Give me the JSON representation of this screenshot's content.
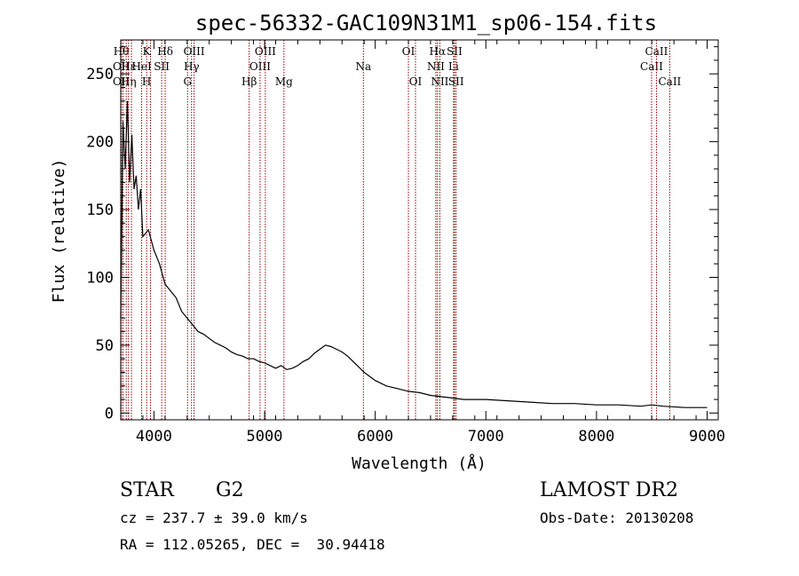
{
  "chart_data": {
    "type": "line",
    "title": "spec-56332-GAC109N31M1_sp06-154.fits",
    "xlabel": "Wavelength (Å)",
    "ylabel": "Flux (relative)",
    "xlim": [
      3700,
      9100
    ],
    "ylim": [
      -5,
      275
    ],
    "xticks": [
      4000,
      5000,
      6000,
      7000,
      8000,
      9000
    ],
    "yticks": [
      0,
      50,
      100,
      150,
      200,
      250
    ],
    "line_color": "#000000",
    "marker_color": "#8b0000",
    "series": [
      {
        "x": [
          3700,
          3720,
          3740,
          3760,
          3780,
          3800,
          3820,
          3840,
          3860,
          3880,
          3900,
          3950,
          4000,
          4050,
          4100,
          4150,
          4200,
          4250,
          4300,
          4350,
          4400,
          4450,
          4500,
          4550,
          4600,
          4650,
          4700,
          4750,
          4800,
          4850,
          4900,
          4950,
          5000,
          5050,
          5100,
          5150,
          5200,
          5250,
          5300,
          5350,
          5400,
          5450,
          5500,
          5550,
          5600,
          5650,
          5700,
          5750,
          5800,
          5850,
          5900,
          5950,
          6000,
          6100,
          6200,
          6300,
          6400,
          6500,
          6600,
          6700,
          6800,
          7000,
          7200,
          7400,
          7600,
          7800,
          8000,
          8200,
          8400,
          8500,
          8600,
          8800,
          9000
        ],
        "y": [
          70,
          215,
          180,
          230,
          170,
          205,
          165,
          175,
          150,
          165,
          130,
          135,
          120,
          110,
          95,
          90,
          85,
          75,
          70,
          65,
          60,
          58,
          55,
          52,
          50,
          48,
          45,
          43,
          42,
          40,
          40,
          38,
          37,
          35,
          33,
          35,
          32,
          33,
          35,
          38,
          40,
          44,
          47,
          50,
          49,
          47,
          45,
          42,
          38,
          34,
          30,
          27,
          24,
          20,
          18,
          16,
          15,
          13,
          12,
          11,
          10,
          10,
          9,
          8,
          7,
          7,
          6,
          6,
          5,
          6,
          5,
          4,
          4
        ]
      }
    ],
    "lines": [
      {
        "x": 3705,
        "labels": [
          "Hθ",
          "OII",
          "OII"
        ]
      },
      {
        "x": 3720,
        "labels": [
          "",
          "",
          ""
        ]
      },
      {
        "x": 3750,
        "labels": [
          "",
          "",
          ""
        ]
      },
      {
        "x": 3770,
        "labels": [
          "",
          "Hε",
          "Hη"
        ]
      },
      {
        "x": 3797,
        "labels": [
          "",
          "",
          ""
        ]
      },
      {
        "x": 3889,
        "labels": [
          "",
          "HeI",
          ""
        ]
      },
      {
        "x": 3934,
        "labels": [
          "K",
          "",
          "H"
        ]
      },
      {
        "x": 3969,
        "labels": [
          "",
          "",
          ""
        ]
      },
      {
        "x": 4070,
        "labels": [
          "",
          "SII",
          ""
        ]
      },
      {
        "x": 4102,
        "labels": [
          "Hδ",
          "",
          ""
        ]
      },
      {
        "x": 4304,
        "labels": [
          "",
          "",
          "G"
        ]
      },
      {
        "x": 4340,
        "labels": [
          "",
          "Hγ",
          ""
        ]
      },
      {
        "x": 4363,
        "labels": [
          "OIII",
          "",
          ""
        ]
      },
      {
        "x": 4861,
        "labels": [
          "",
          "",
          "Hβ"
        ]
      },
      {
        "x": 4959,
        "labels": [
          "",
          "OIII",
          ""
        ]
      },
      {
        "x": 5007,
        "labels": [
          "OIII",
          "",
          ""
        ]
      },
      {
        "x": 5175,
        "labels": [
          "",
          "",
          "Mg"
        ]
      },
      {
        "x": 5893,
        "labels": [
          "",
          "Na",
          ""
        ]
      },
      {
        "x": 6300,
        "labels": [
          "OI",
          "",
          ""
        ]
      },
      {
        "x": 6364,
        "labels": [
          "",
          "",
          "OI"
        ]
      },
      {
        "x": 6548,
        "labels": [
          "",
          "NII",
          ""
        ]
      },
      {
        "x": 6563,
        "labels": [
          "Hα",
          "",
          ""
        ]
      },
      {
        "x": 6584,
        "labels": [
          "",
          "",
          "NII"
        ]
      },
      {
        "x": 6708,
        "labels": [
          "",
          "Li",
          ""
        ]
      },
      {
        "x": 6717,
        "labels": [
          "SII",
          "",
          ""
        ]
      },
      {
        "x": 6731,
        "labels": [
          "",
          "",
          "SII"
        ]
      },
      {
        "x": 8498,
        "labels": [
          "",
          "CaII",
          ""
        ]
      },
      {
        "x": 8542,
        "labels": [
          "CaII",
          "",
          ""
        ]
      },
      {
        "x": 8662,
        "labels": [
          "",
          "",
          "CaII"
        ]
      }
    ]
  },
  "info": {
    "object_class": "STAR",
    "subclass": "G2",
    "survey": "LAMOST DR2",
    "redshift": "cz = 237.7 ± 39.0 km/s",
    "obs_date": "Obs-Date: 20130208",
    "coords": "RA = 112.05265, DEC =  30.94418"
  }
}
